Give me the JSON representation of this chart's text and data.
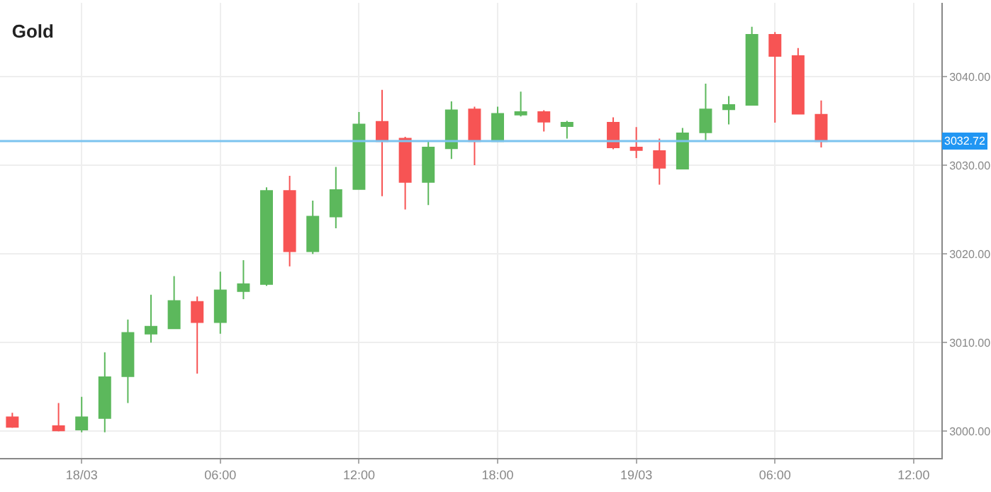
{
  "chart_data": {
    "type": "candlestick",
    "title": "Gold",
    "x": [
      "--03-17T21:00",
      "--03-17T23:00",
      "--03-18T00:00",
      "--03-18T01:00",
      "--03-18T02:00",
      "--03-18T03:00",
      "--03-18T04:00",
      "--03-18T05:00",
      "--03-18T06:00",
      "--03-18T07:00",
      "--03-18T08:00",
      "--03-18T09:00",
      "--03-18T10:00",
      "--03-18T11:00",
      "--03-18T12:00",
      "--03-18T13:00",
      "--03-18T14:00",
      "--03-18T15:00",
      "--03-18T16:00",
      "--03-18T17:00",
      "--03-18T18:00",
      "--03-18T19:00",
      "--03-18T20:00",
      "--03-18T21:00",
      "--03-18T23:00",
      "--03-19T00:00",
      "--03-19T01:00",
      "--03-19T02:00",
      "--03-19T03:00",
      "--03-19T04:00",
      "--03-19T05:00",
      "--03-19T06:00",
      "--03-19T07:00",
      "--03-19T08:00"
    ],
    "ohlc": [
      [
        3001.6,
        3002.1,
        3000.4,
        3000.5
      ],
      [
        3000.6,
        3003.2,
        3000.0,
        3000.1
      ],
      [
        3000.2,
        3003.9,
        2999.9,
        3001.6
      ],
      [
        3001.5,
        3008.9,
        2999.9,
        3006.1
      ],
      [
        3006.2,
        3012.6,
        3003.2,
        3011.1
      ],
      [
        3011.0,
        3015.4,
        3010.0,
        3011.8
      ],
      [
        3011.6,
        3017.5,
        3011.6,
        3014.7
      ],
      [
        3014.6,
        3015.2,
        3006.5,
        3012.3
      ],
      [
        3012.3,
        3018.0,
        3011.0,
        3015.9
      ],
      [
        3015.8,
        3019.3,
        3014.9,
        3016.6
      ],
      [
        3016.6,
        3027.5,
        3016.4,
        3027.1
      ],
      [
        3027.1,
        3028.8,
        3018.6,
        3020.3
      ],
      [
        3020.3,
        3026.0,
        3020.0,
        3024.2
      ],
      [
        3024.2,
        3029.8,
        3022.9,
        3027.2
      ],
      [
        3027.3,
        3036.0,
        3027.3,
        3034.6
      ],
      [
        3034.9,
        3038.5,
        3026.5,
        3032.7
      ],
      [
        3033.0,
        3033.2,
        3025.0,
        3028.1
      ],
      [
        3028.1,
        3032.7,
        3025.5,
        3032.0
      ],
      [
        3031.9,
        3037.2,
        3030.7,
        3036.2
      ],
      [
        3036.3,
        3036.6,
        3030.0,
        3032.7
      ],
      [
        3032.7,
        3036.6,
        3032.7,
        3035.8
      ],
      [
        3035.7,
        3038.3,
        3035.5,
        3036.0
      ],
      [
        3036.0,
        3036.2,
        3033.8,
        3034.9
      ],
      [
        3034.4,
        3035.0,
        3033.0,
        3034.8
      ],
      [
        3034.8,
        3035.4,
        3031.8,
        3032.0
      ],
      [
        3032.0,
        3034.3,
        3030.8,
        3031.7
      ],
      [
        3031.6,
        3033.0,
        3027.8,
        3029.7
      ],
      [
        3029.6,
        3034.2,
        3029.6,
        3033.6
      ],
      [
        3033.7,
        3039.2,
        3032.8,
        3036.3
      ],
      [
        3036.3,
        3037.8,
        3034.6,
        3036.8
      ],
      [
        3036.8,
        3045.6,
        3036.8,
        3044.7
      ],
      [
        3044.7,
        3045.0,
        3034.8,
        3042.3
      ],
      [
        3042.3,
        3043.2,
        3035.8,
        3035.8
      ],
      [
        3035.7,
        3037.3,
        3032.0,
        3032.7
      ]
    ],
    "colors": [
      "#f75454",
      "#f75454",
      "#5cb85c",
      "#5cb85c",
      "#5cb85c",
      "#5cb85c",
      "#5cb85c",
      "#f75454",
      "#5cb85c",
      "#5cb85c",
      "#5cb85c",
      "#f75454",
      "#5cb85c",
      "#5cb85c",
      "#5cb85c",
      "#f75454",
      "#f75454",
      "#5cb85c",
      "#5cb85c",
      "#f75454",
      "#5cb85c",
      "#5cb85c",
      "#f75454",
      "#5cb85c",
      "#f75454",
      "#f75454",
      "#f75454",
      "#5cb85c",
      "#5cb85c",
      "#5cb85c",
      "#5cb85c",
      "#f75454",
      "#f75454",
      "#f75454"
    ],
    "xlim": [
      "--03-17T20:28",
      "--03-19T13:12"
    ],
    "xticks": [
      {
        "value": "--03-18T00:00",
        "label": "18/03"
      },
      {
        "value": "--03-18T06:00",
        "label": "06:00"
      },
      {
        "value": "--03-18T12:00",
        "label": "12:00"
      },
      {
        "value": "--03-18T18:00",
        "label": "18:00"
      },
      {
        "value": "--03-19T00:00",
        "label": "19/03"
      },
      {
        "value": "--03-19T06:00",
        "label": "06:00"
      },
      {
        "value": "--03-19T12:00",
        "label": "12:00"
      }
    ],
    "ylim": [
      2997.0,
      3048.3
    ],
    "yticks": [
      {
        "value": 3000,
        "label": "3000.00"
      },
      {
        "value": 3010,
        "label": "3010.00"
      },
      {
        "value": 3020,
        "label": "3020.00"
      },
      {
        "value": 3030,
        "label": "3030.00"
      },
      {
        "value": 3040,
        "label": "3040.00"
      }
    ],
    "ref_lines": [
      {
        "axis": "y",
        "value": 3032.72,
        "label": "3032.72",
        "color": "#7cc4ef"
      }
    ],
    "grid": true
  }
}
